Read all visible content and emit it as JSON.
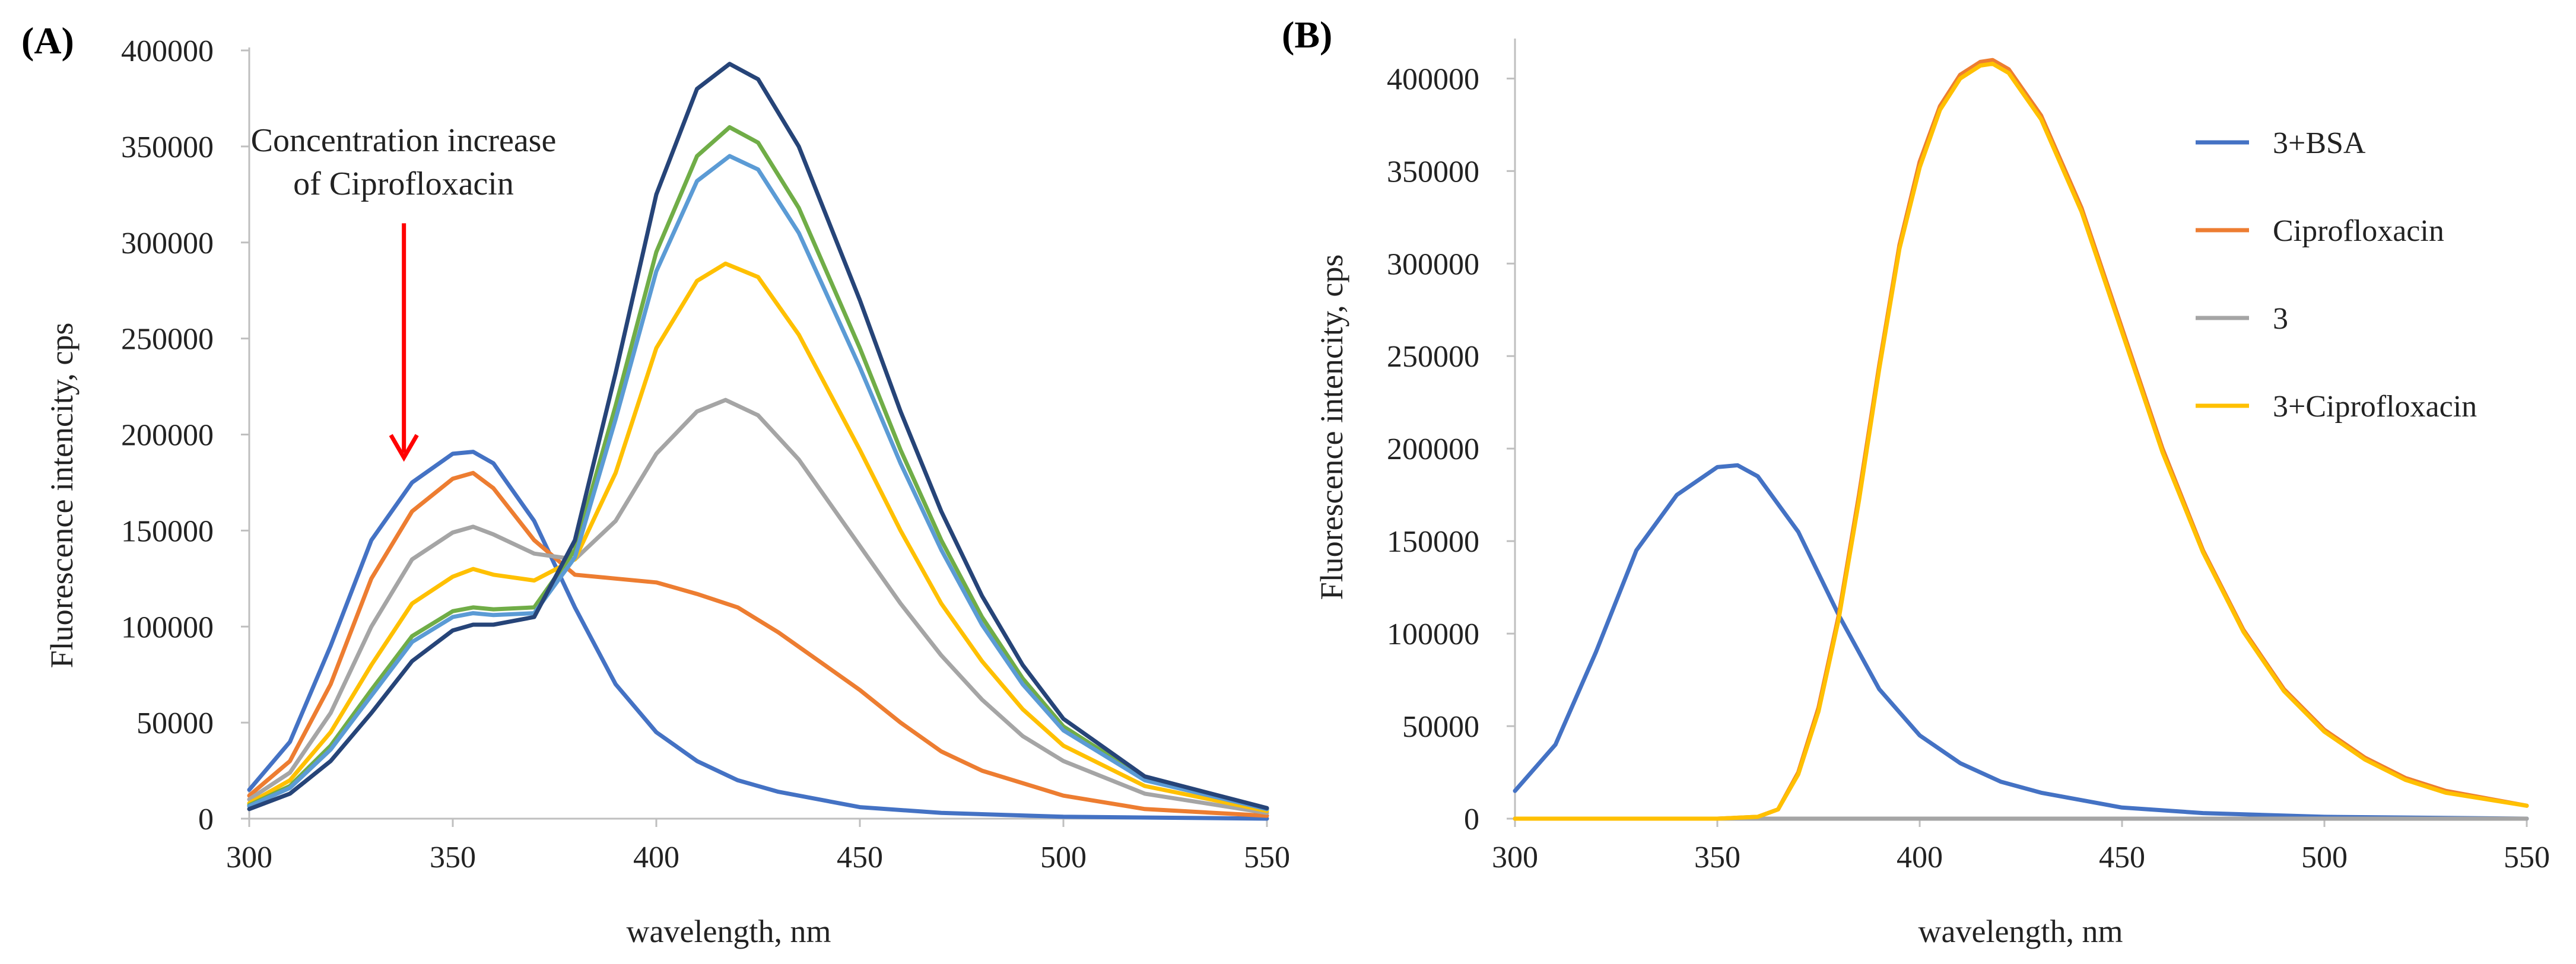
{
  "chart_data": [
    {
      "type": "line",
      "panel_label": "(A)",
      "title": "",
      "xlabel": "wavelength, nm",
      "ylabel": "Fluorescence intencity, cps",
      "xlim": [
        300,
        550
      ],
      "ylim": [
        0,
        400000
      ],
      "xticks": [
        300,
        350,
        400,
        450,
        500,
        550
      ],
      "yticks": [
        0,
        50000,
        100000,
        150000,
        200000,
        250000,
        300000,
        350000,
        400000
      ],
      "legend": "none",
      "annotation": {
        "lines": [
          "Concentration increase",
          "of Ciprofloxacin"
        ],
        "arrow_color": "#ff0000",
        "arrow_x": 338,
        "arrow_from_y": 310000,
        "arrow_to_y": 188000
      },
      "series": [
        {
          "name": "series-1",
          "color": "#4472c4",
          "x": [
            300,
            310,
            320,
            330,
            340,
            350,
            355,
            360,
            370,
            380,
            390,
            400,
            410,
            420,
            430,
            450,
            470,
            500,
            550
          ],
          "values": [
            15000,
            40000,
            90000,
            145000,
            175000,
            190000,
            191000,
            185000,
            155000,
            110000,
            70000,
            45000,
            30000,
            20000,
            14000,
            6000,
            3000,
            1000,
            0
          ]
        },
        {
          "name": "series-2",
          "color": "#ed7d31",
          "x": [
            300,
            310,
            320,
            330,
            340,
            350,
            355,
            360,
            370,
            380,
            390,
            400,
            410,
            420,
            430,
            440,
            450,
            460,
            470,
            480,
            500,
            520,
            550
          ],
          "values": [
            12000,
            30000,
            70000,
            125000,
            160000,
            177000,
            180000,
            172000,
            145000,
            127000,
            125000,
            123000,
            117000,
            110000,
            97000,
            82000,
            67000,
            50000,
            35000,
            25000,
            12000,
            5000,
            1500
          ]
        },
        {
          "name": "series-3",
          "color": "#a5a5a5",
          "x": [
            300,
            310,
            320,
            330,
            340,
            350,
            355,
            360,
            370,
            380,
            390,
            400,
            410,
            417,
            425,
            435,
            450,
            460,
            470,
            480,
            490,
            500,
            520,
            550
          ],
          "values": [
            10000,
            24000,
            55000,
            100000,
            135000,
            149000,
            152000,
            148000,
            138000,
            135000,
            155000,
            190000,
            212000,
            218000,
            210000,
            187000,
            142000,
            112000,
            85000,
            62000,
            43000,
            30000,
            13000,
            3000
          ]
        },
        {
          "name": "series-4",
          "color": "#ffc000",
          "x": [
            300,
            310,
            320,
            330,
            340,
            350,
            355,
            360,
            370,
            380,
            390,
            400,
            410,
            417,
            425,
            435,
            450,
            460,
            470,
            480,
            490,
            500,
            520,
            550
          ],
          "values": [
            8000,
            20000,
            45000,
            80000,
            112000,
            126000,
            130000,
            127000,
            124000,
            135000,
            180000,
            245000,
            280000,
            289000,
            282000,
            252000,
            192000,
            150000,
            112000,
            82000,
            57000,
            38000,
            17000,
            4000
          ]
        },
        {
          "name": "series-5",
          "color": "#70ad47",
          "x": [
            300,
            310,
            320,
            330,
            340,
            350,
            355,
            360,
            370,
            380,
            390,
            400,
            410,
            418,
            425,
            435,
            450,
            460,
            470,
            480,
            490,
            500,
            520,
            550
          ],
          "values": [
            7000,
            17000,
            38000,
            67000,
            95000,
            108000,
            110000,
            109000,
            110000,
            140000,
            215000,
            295000,
            345000,
            360000,
            352000,
            318000,
            245000,
            192000,
            145000,
            105000,
            73000,
            48000,
            21000,
            5000
          ]
        },
        {
          "name": "series-6",
          "color": "#5b9bd5",
          "x": [
            300,
            310,
            320,
            330,
            340,
            350,
            355,
            360,
            370,
            380,
            390,
            400,
            410,
            418,
            425,
            435,
            450,
            460,
            470,
            480,
            490,
            500,
            520,
            550
          ],
          "values": [
            6500,
            16000,
            36000,
            64000,
            92000,
            105000,
            107000,
            106000,
            107000,
            136000,
            208000,
            285000,
            332000,
            345000,
            338000,
            305000,
            235000,
            185000,
            140000,
            101000,
            70000,
            46000,
            20000,
            5000
          ]
        },
        {
          "name": "series-7",
          "color": "#264478",
          "x": [
            300,
            310,
            320,
            330,
            340,
            350,
            355,
            360,
            370,
            380,
            390,
            400,
            410,
            418,
            425,
            435,
            450,
            460,
            470,
            480,
            490,
            500,
            520,
            550
          ],
          "values": [
            5000,
            13000,
            30000,
            55000,
            82000,
            98000,
            101000,
            101000,
            105000,
            145000,
            232000,
            325000,
            380000,
            393000,
            385000,
            350000,
            270000,
            212000,
            160000,
            116000,
            80000,
            52000,
            22000,
            5500
          ]
        }
      ]
    },
    {
      "type": "line",
      "panel_label": "(B)",
      "title": "",
      "xlabel": "wavelength, nm",
      "ylabel": "Fluorescence intencity, cps",
      "xlim": [
        300,
        550
      ],
      "ylim": [
        0,
        420000
      ],
      "xticks": [
        300,
        350,
        400,
        450,
        500,
        550
      ],
      "yticks": [
        0,
        50000,
        100000,
        150000,
        200000,
        250000,
        300000,
        350000,
        400000
      ],
      "legend": "right",
      "series": [
        {
          "name": "3+BSA",
          "color": "#4472c4",
          "x": [
            300,
            310,
            320,
            330,
            340,
            350,
            355,
            360,
            370,
            380,
            390,
            400,
            410,
            420,
            430,
            450,
            470,
            500,
            550
          ],
          "values": [
            15000,
            40000,
            90000,
            145000,
            175000,
            190000,
            191000,
            185000,
            155000,
            110000,
            70000,
            45000,
            30000,
            20000,
            14000,
            6000,
            3000,
            1000,
            0
          ]
        },
        {
          "name": "Ciprofloxacin",
          "color": "#ed7d31",
          "x": [
            300,
            350,
            360,
            365,
            370,
            375,
            380,
            385,
            390,
            395,
            400,
            405,
            410,
            415,
            418,
            422,
            430,
            440,
            450,
            460,
            470,
            480,
            490,
            500,
            510,
            520,
            530,
            550
          ],
          "values": [
            0,
            0,
            1000,
            5000,
            25000,
            60000,
            110000,
            175000,
            245000,
            310000,
            355000,
            385000,
            402000,
            409000,
            410000,
            405000,
            380000,
            330000,
            265000,
            200000,
            145000,
            102000,
            70000,
            48000,
            33000,
            22000,
            15000,
            7000
          ]
        },
        {
          "name": "3",
          "color": "#a5a5a5",
          "x": [
            300,
            550
          ],
          "values": [
            0,
            0
          ]
        },
        {
          "name": "3+Ciprofloxacin",
          "color": "#ffc000",
          "x": [
            300,
            350,
            360,
            365,
            370,
            375,
            380,
            385,
            390,
            395,
            400,
            405,
            410,
            415,
            418,
            422,
            430,
            440,
            450,
            460,
            470,
            480,
            490,
            500,
            510,
            520,
            530,
            550
          ],
          "values": [
            0,
            0,
            1000,
            5000,
            24000,
            58000,
            108000,
            172000,
            243000,
            308000,
            352000,
            383000,
            400000,
            407000,
            408000,
            403000,
            378000,
            328000,
            263000,
            198000,
            144000,
            101000,
            69000,
            47000,
            32000,
            21000,
            14000,
            7000
          ]
        }
      ]
    }
  ]
}
